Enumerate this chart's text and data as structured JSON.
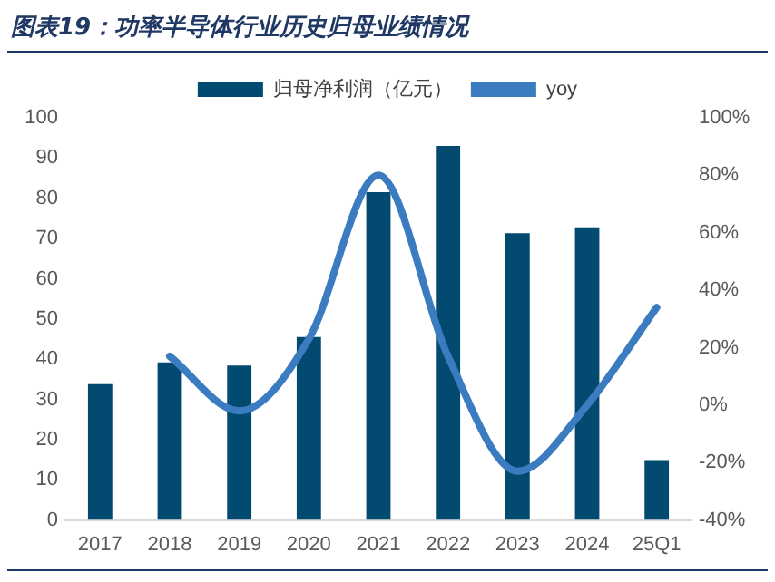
{
  "chart_data": {
    "type": "bar",
    "title": "图表19：功率半导体行业历史归母业绩情况",
    "categories": [
      "2017",
      "2018",
      "2019",
      "2020",
      "2021",
      "2022",
      "2023",
      "2024",
      "25Q1"
    ],
    "series": [
      {
        "name": "归母净利润（亿元）",
        "color": "#034a70",
        "values": [
          33.8,
          39.2,
          38.4,
          45.5,
          81.5,
          93,
          71.3,
          72.8,
          14.9
        ]
      },
      {
        "name": "yoy",
        "type": "line",
        "axis": "y2",
        "color": "#3b7cc0",
        "values": [
          null,
          17,
          -2,
          23,
          80,
          17,
          -23,
          0,
          34
        ]
      }
    ],
    "ylim": [
      0,
      100
    ],
    "yticks": [
      0,
      10,
      20,
      30,
      40,
      50,
      60,
      70,
      80,
      90,
      100
    ],
    "y2lim": [
      -40,
      100
    ],
    "y2ticks": [
      {
        "value": -40,
        "label": "-40%"
      },
      {
        "value": -20,
        "label": "-20%"
      },
      {
        "value": 0,
        "label": "0%"
      },
      {
        "value": 20,
        "label": "20%"
      },
      {
        "value": 40,
        "label": "40%"
      },
      {
        "value": 60,
        "label": "60%"
      },
      {
        "value": 80,
        "label": "80%"
      },
      {
        "value": 100,
        "label": "100%"
      }
    ],
    "grid": false,
    "legend": "top",
    "marker": "none"
  }
}
